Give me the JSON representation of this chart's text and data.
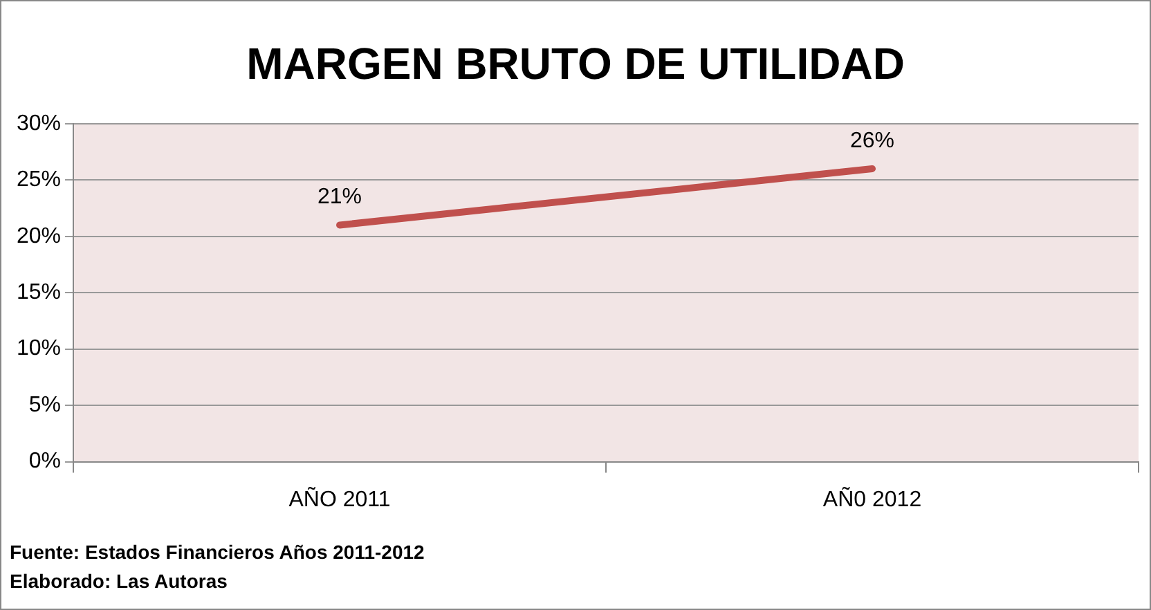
{
  "chart_data": {
    "type": "line",
    "title": "MARGEN BRUTO DE UTILIDAD",
    "categories": [
      "AÑO 2011",
      "AÑ0 2012"
    ],
    "series": [
      {
        "color": "#c0504d",
        "values": [
          21,
          26
        ],
        "value_labels": [
          "21%",
          "26%"
        ]
      }
    ],
    "ylim": [
      0,
      30
    ],
    "yticks": [
      {
        "value": 0,
        "label": "0%"
      },
      {
        "value": 5,
        "label": "5%"
      },
      {
        "value": 10,
        "label": "10%"
      },
      {
        "value": 15,
        "label": "15%"
      },
      {
        "value": 20,
        "label": "20%"
      },
      {
        "value": 25,
        "label": "25%"
      },
      {
        "value": 30,
        "label": "30%"
      }
    ],
    "grid": "y",
    "legend": false,
    "marker": "none",
    "line_style": "solid",
    "annotations": [
      "Fuente: Estados Financieros Años 2011-2012",
      "Elaborado:  Las Autoras"
    ]
  }
}
